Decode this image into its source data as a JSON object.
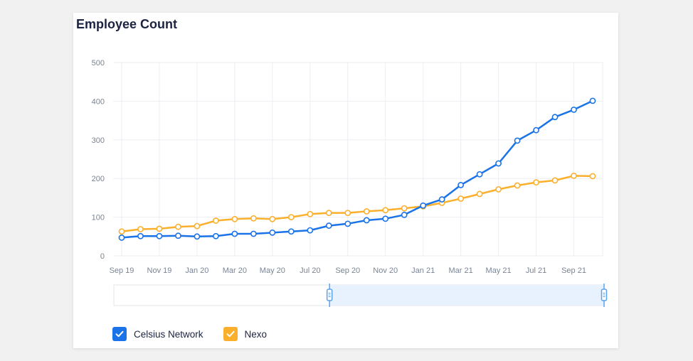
{
  "card": {
    "title": "Employee Count"
  },
  "legend": [
    {
      "name": "Celsius Network",
      "checked": true
    },
    {
      "name": "Nexo",
      "checked": true
    }
  ],
  "colors": {
    "celsius": "#1a73e8",
    "nexo": "#fbb02d",
    "grid": "#eceef2",
    "range_fill": "#e8f2fe",
    "handle": "#5aa2ee"
  },
  "chart_data": {
    "type": "line",
    "title": "Employee Count",
    "xlabel": "",
    "ylabel": "",
    "ylim": [
      0,
      500
    ],
    "yticks": [
      0,
      100,
      200,
      300,
      400,
      500
    ],
    "x_tick_labels": [
      "Sep 19",
      "Nov 19",
      "Jan 20",
      "Mar 20",
      "May 20",
      "Jul 20",
      "Sep 20",
      "Nov 20",
      "Jan 21",
      "Mar 21",
      "May 21",
      "Jul 21",
      "Sep 21"
    ],
    "x": [
      "2019-09",
      "2019-10",
      "2019-11",
      "2019-12",
      "2020-01",
      "2020-02",
      "2020-03",
      "2020-04",
      "2020-05",
      "2020-06",
      "2020-07",
      "2020-08",
      "2020-09",
      "2020-10",
      "2020-11",
      "2020-12",
      "2021-01",
      "2021-02",
      "2021-03",
      "2021-04",
      "2021-05",
      "2021-06",
      "2021-07",
      "2021-08",
      "2021-09",
      "2021-10"
    ],
    "series": [
      {
        "name": "Celsius Network",
        "values": [
          47,
          51,
          51,
          52,
          50,
          51,
          57,
          57,
          60,
          63,
          66,
          78,
          83,
          92,
          96,
          106,
          130,
          146,
          183,
          211,
          239,
          298,
          325,
          359,
          378,
          401
        ]
      },
      {
        "name": "Nexo",
        "values": [
          63,
          69,
          70,
          75,
          77,
          91,
          95,
          97,
          95,
          100,
          108,
          111,
          111,
          115,
          118,
          123,
          128,
          137,
          148,
          160,
          172,
          182,
          190,
          195,
          207,
          206
        ]
      }
    ],
    "grid": true,
    "legend_position": "bottom-left",
    "range_selector": {
      "from": "2020-08",
      "to": "2021-10"
    }
  }
}
